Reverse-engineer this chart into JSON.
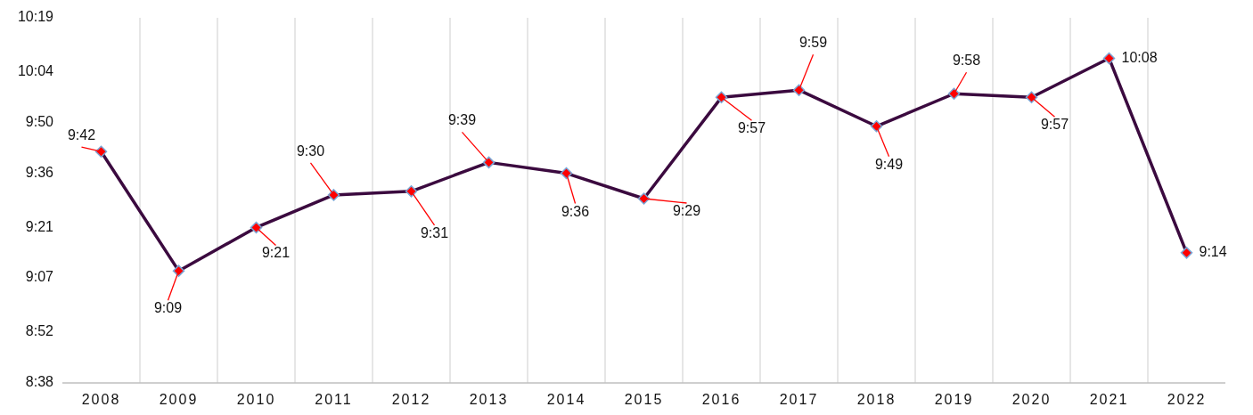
{
  "chart_data": {
    "type": "line",
    "categories": [
      "2008",
      "2009",
      "2010",
      "2011",
      "2012",
      "2013",
      "2014",
      "2015",
      "2016",
      "2017",
      "2018",
      "2019",
      "2020",
      "2021",
      "2022"
    ],
    "series": [
      {
        "color": "#3b0a3f",
        "values": [
          9.7,
          9.15,
          9.35,
          9.5,
          9.5167,
          9.65,
          9.6,
          9.4833,
          9.95,
          9.9833,
          9.8167,
          9.9667,
          9.95,
          10.13,
          9.2333
        ],
        "value_labels": [
          "9:42",
          "9:09",
          "9:21",
          "9:30",
          "9:31",
          "9:39",
          "9:36",
          "9:29",
          "9:57",
          "9:59",
          "9:49",
          "9:58",
          "9:57",
          "10:08",
          "9:14"
        ]
      }
    ],
    "ylim": [
      8.6333,
      10.3167
    ],
    "yticks": [
      {
        "value": 8.6333,
        "label": "8:38"
      },
      {
        "value": 8.8667,
        "label": "8:52"
      },
      {
        "value": 9.1167,
        "label": "9:07"
      },
      {
        "value": 9.35,
        "label": "9:21"
      },
      {
        "value": 9.6,
        "label": "9:36"
      },
      {
        "value": 9.8333,
        "label": "9:50"
      },
      {
        "value": 10.0667,
        "label": "10:04"
      },
      {
        "value": 10.3167,
        "label": "10:19"
      }
    ],
    "grid": "x",
    "marker": "diamond",
    "line_style": "solid"
  }
}
